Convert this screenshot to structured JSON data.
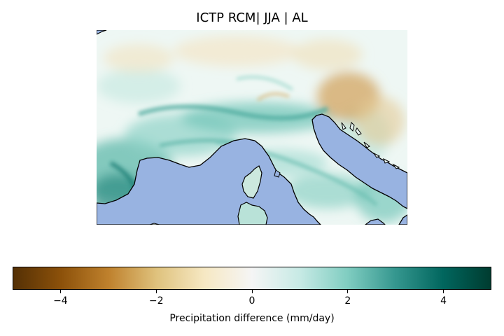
{
  "title": "ICTP RCM| JJA | AL",
  "colors": {
    "sea": "#98b3e1",
    "coastline": "#000000",
    "colormap": [
      "#543005",
      "#8c510a",
      "#bf812d",
      "#dfc27d",
      "#f6e8c3",
      "#f5f5f5",
      "#c7eae5",
      "#80cdc1",
      "#35978f",
      "#01665e",
      "#003c30"
    ]
  },
  "colorbar": {
    "label": "Precipitation difference (mm/day)",
    "range": [
      -5,
      5
    ],
    "ticks": [
      {
        "value": -4,
        "label": "−4"
      },
      {
        "value": -2,
        "label": "−2"
      },
      {
        "value": 0,
        "label": "0"
      },
      {
        "value": 2,
        "label": "2"
      },
      {
        "value": 4,
        "label": "4"
      }
    ]
  }
}
